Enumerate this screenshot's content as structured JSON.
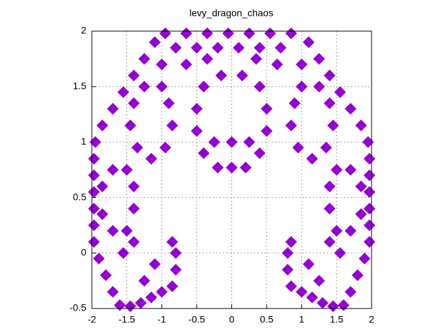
{
  "chart_data": {
    "type": "scatter",
    "title": "levy_dragon_chaos",
    "color": "#9400d3",
    "grid": true,
    "xlim": [
      -2,
      2
    ],
    "ylim": [
      -0.5,
      2
    ],
    "xticks": [
      -2,
      -1.5,
      -1,
      -0.5,
      0,
      0.5,
      1,
      1.5,
      2
    ],
    "yticks": [
      -0.5,
      0,
      0.5,
      1,
      1.5,
      2
    ],
    "x": [
      -0.95,
      -0.65,
      -0.35,
      -0.05,
      0.25,
      0.55,
      0.85,
      -0.8,
      -0.5,
      -0.2,
      0.1,
      0.4,
      0.7,
      -0.4,
      -0.5,
      -0.5,
      -0.4,
      -0.2,
      0,
      0.2,
      0.4,
      0.5,
      0.5,
      0.4,
      -0.15,
      0.15,
      0,
      -0.25,
      0.25,
      -1.1,
      -1.25,
      -1.4,
      -1.55,
      -1.7,
      -1.85,
      -1.95,
      -1.97,
      -1.97,
      -1.97,
      -1.97,
      -1.97,
      -1.97,
      -1.9,
      -1.8,
      -1.7,
      -1.6,
      -1.45,
      -1.3,
      -1.15,
      -1.0,
      -0.85,
      -0.8,
      -0.8,
      -0.85,
      -1.4,
      -1.55,
      -1.25,
      -1.1,
      -1.5,
      -1.4,
      -1.4,
      -1.5,
      -1.7,
      -1.85,
      -1.85,
      -1.7,
      -1.0,
      -0.9,
      -0.85,
      -0.95,
      -1.15,
      -1.35,
      -1.45,
      -1.4,
      -1.25,
      -0.65,
      -0.35,
      -1.0,
      1.1,
      1.25,
      1.4,
      1.55,
      1.7,
      1.85,
      1.95,
      1.97,
      1.97,
      1.97,
      1.97,
      1.97,
      1.97,
      1.9,
      1.8,
      1.7,
      1.6,
      1.45,
      1.3,
      1.15,
      1.0,
      0.85,
      0.8,
      0.8,
      0.85,
      1.4,
      1.55,
      1.25,
      1.1,
      1.5,
      1.4,
      1.4,
      1.5,
      1.7,
      1.85,
      1.85,
      1.7,
      1.0,
      0.9,
      0.85,
      0.95,
      1.15,
      1.35,
      1.45,
      1.4,
      1.25,
      0.65,
      0.35,
      1.0
    ],
    "y": [
      1.98,
      1.98,
      1.98,
      1.98,
      1.98,
      1.98,
      1.98,
      1.85,
      1.85,
      1.85,
      1.85,
      1.85,
      1.85,
      1.5,
      1.3,
      1.1,
      0.9,
      0.77,
      0.77,
      0.77,
      0.9,
      1.1,
      1.3,
      1.5,
      1.6,
      1.6,
      1.0,
      1.0,
      1.0,
      1.9,
      1.75,
      1.6,
      1.45,
      1.3,
      1.15,
      1.0,
      0.85,
      0.7,
      0.55,
      0.4,
      0.25,
      0.1,
      -0.05,
      -0.2,
      -0.35,
      -0.47,
      -0.48,
      -0.45,
      -0.4,
      -0.35,
      -0.3,
      -0.15,
      0.0,
      0.1,
      0.1,
      0.0,
      -0.25,
      -0.1,
      0.75,
      0.6,
      0.4,
      0.2,
      0.2,
      0.35,
      0.6,
      0.75,
      1.5,
      1.35,
      1.15,
      0.95,
      0.85,
      0.95,
      1.15,
      1.35,
      1.5,
      1.7,
      1.75,
      1.7,
      1.9,
      1.75,
      1.6,
      1.45,
      1.3,
      1.15,
      1.0,
      0.85,
      0.7,
      0.55,
      0.4,
      0.25,
      0.1,
      -0.05,
      -0.2,
      -0.35,
      -0.47,
      -0.48,
      -0.45,
      -0.4,
      -0.35,
      -0.3,
      -0.15,
      0.0,
      0.1,
      0.1,
      0.0,
      -0.25,
      -0.1,
      0.75,
      0.6,
      0.4,
      0.2,
      0.2,
      0.35,
      0.6,
      0.75,
      1.5,
      1.35,
      1.15,
      0.95,
      0.85,
      0.95,
      1.15,
      1.35,
      1.5,
      1.7,
      1.75,
      1.7
    ]
  }
}
